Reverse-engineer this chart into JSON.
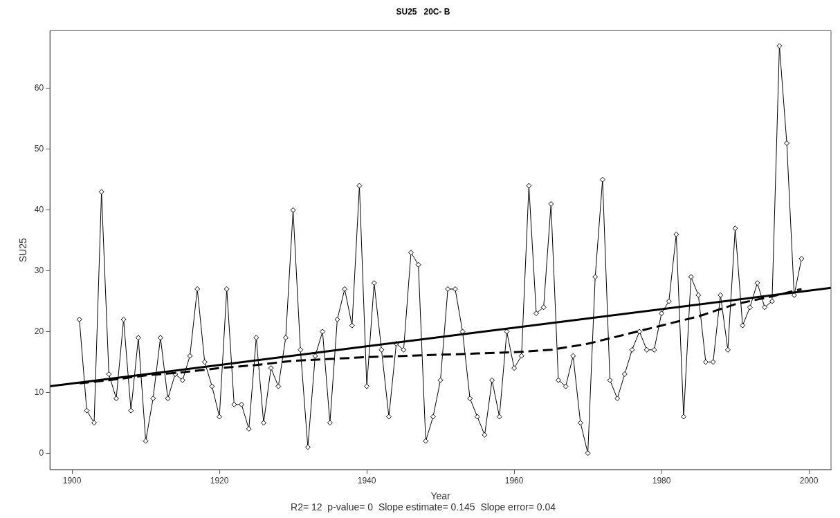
{
  "chart_data": {
    "type": "line",
    "title": "SU25   20C- B",
    "xlabel": "Year",
    "ylabel": "SU25",
    "annotations": [
      "R2= 12  p-value= 0  Slope estimate= 0.145  Slope error= 0.04"
    ],
    "xlim": [
      1897,
      2003
    ],
    "xticks": [
      1900,
      1920,
      1940,
      1960,
      1980,
      2000
    ],
    "ylim": [
      -2.7,
      69.5
    ],
    "yticks": [
      0,
      10,
      20,
      30,
      40,
      50,
      60
    ],
    "grid": false,
    "marker": "diamond",
    "series": [
      {
        "color": "#000000",
        "line_style": "solid",
        "x": [
          1901,
          1902,
          1903,
          1904,
          1905,
          1906,
          1907,
          1908,
          1909,
          1910,
          1911,
          1912,
          1913,
          1914,
          1915,
          1916,
          1917,
          1918,
          1919,
          1920,
          1921,
          1922,
          1923,
          1924,
          1925,
          1926,
          1927,
          1928,
          1929,
          1930,
          1931,
          1932,
          1933,
          1934,
          1935,
          1936,
          1937,
          1938,
          1939,
          1940,
          1941,
          1942,
          1943,
          1944,
          1945,
          1946,
          1947,
          1948,
          1949,
          1950,
          1951,
          1952,
          1953,
          1954,
          1955,
          1956,
          1957,
          1958,
          1959,
          1960,
          1961,
          1962,
          1963,
          1964,
          1965,
          1966,
          1967,
          1968,
          1969,
          1970,
          1971,
          1972,
          1973,
          1974,
          1975,
          1976,
          1977,
          1978,
          1979,
          1980,
          1981,
          1982,
          1983,
          1984,
          1985,
          1986,
          1987,
          1988,
          1989,
          1990,
          1991,
          1992,
          1993,
          1994,
          1995,
          1996,
          1997,
          1998,
          1999
        ],
        "values": [
          22,
          7,
          5,
          43,
          13,
          9,
          22,
          7,
          19,
          2,
          9,
          19,
          9,
          13,
          12,
          16,
          27,
          15,
          11,
          6,
          27,
          8,
          8,
          4,
          19,
          5,
          14,
          11,
          19,
          40,
          17,
          1,
          16,
          20,
          5,
          22,
          27,
          21,
          44,
          11,
          28,
          17,
          6,
          18,
          17,
          33,
          31,
          2,
          6,
          12,
          27,
          27,
          20,
          9,
          6,
          3,
          12,
          6,
          20,
          14,
          16,
          44,
          23,
          24,
          41,
          12,
          11,
          16,
          5,
          0,
          29,
          45,
          12,
          9,
          13,
          17,
          20,
          17,
          17,
          23,
          25,
          36,
          6,
          29,
          26,
          15,
          15,
          26,
          17,
          37,
          21,
          24,
          28,
          24,
          25,
          67,
          51,
          26,
          32
        ]
      },
      {
        "type": "line",
        "color": "#000000",
        "marker": "none",
        "line_style": "solid",
        "x": [
          1897,
          2003
        ],
        "values": [
          11,
          27.2
        ]
      },
      {
        "type": "line",
        "color": "#000000",
        "marker": "none",
        "line_style": "dashed",
        "x": [
          1901,
          1905,
          1910,
          1915,
          1920,
          1925,
          1930,
          1935,
          1940,
          1945,
          1950,
          1955,
          1960,
          1965,
          1970,
          1975,
          1980,
          1985,
          1990,
          1995,
          1999
        ],
        "values": [
          11.5,
          12,
          12.8,
          13.3,
          14,
          14.5,
          15.2,
          15.5,
          15.8,
          16,
          16.2,
          16.4,
          16.6,
          17,
          18,
          19.5,
          21,
          22.5,
          24.5,
          25.8,
          27
        ]
      }
    ]
  }
}
